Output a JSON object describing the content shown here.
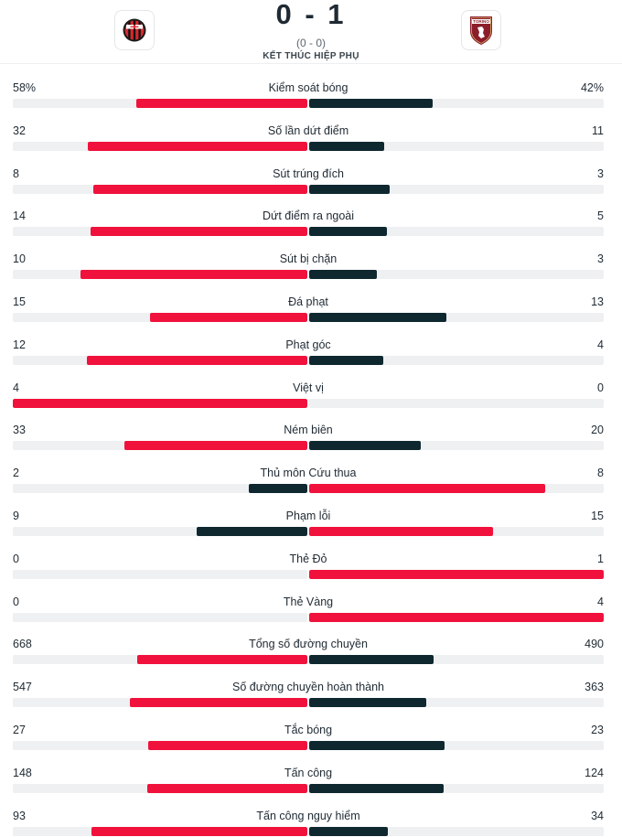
{
  "match": {
    "score": "0 - 1",
    "half_time": "(0 - 0)",
    "status": "KẾT THÚC HIỆP PHỤ",
    "home_logo": "ac-milan-crest",
    "away_logo": "torino-crest",
    "away_logo_text": "TORINO"
  },
  "colors": {
    "leader": "#f0123c",
    "trailer": "#0f2830",
    "track": "#eef0f2"
  },
  "stats": [
    {
      "label": "Kiểm soát bóng",
      "home": "58%",
      "away": "42%",
      "home_value": 58,
      "away_value": 42
    },
    {
      "label": "Số lần dứt điểm",
      "home": "32",
      "away": "11",
      "home_value": 32,
      "away_value": 11
    },
    {
      "label": "Sút trúng đích",
      "home": "8",
      "away": "3",
      "home_value": 8,
      "away_value": 3
    },
    {
      "label": "Dứt điểm ra ngoài",
      "home": "14",
      "away": "5",
      "home_value": 14,
      "away_value": 5
    },
    {
      "label": "Sút bị chặn",
      "home": "10",
      "away": "3",
      "home_value": 10,
      "away_value": 3
    },
    {
      "label": "Đá phạt",
      "home": "15",
      "away": "13",
      "home_value": 15,
      "away_value": 13
    },
    {
      "label": "Phạt góc",
      "home": "12",
      "away": "4",
      "home_value": 12,
      "away_value": 4
    },
    {
      "label": "Việt vị",
      "home": "4",
      "away": "0",
      "home_value": 4,
      "away_value": 0
    },
    {
      "label": "Ném biên",
      "home": "33",
      "away": "20",
      "home_value": 33,
      "away_value": 20
    },
    {
      "label": "Thủ môn Cứu thua",
      "home": "2",
      "away": "8",
      "home_value": 2,
      "away_value": 8
    },
    {
      "label": "Phạm lỗi",
      "home": "9",
      "away": "15",
      "home_value": 9,
      "away_value": 15
    },
    {
      "label": "Thẻ Đỏ",
      "home": "0",
      "away": "1",
      "home_value": 0,
      "away_value": 1
    },
    {
      "label": "Thẻ Vàng",
      "home": "0",
      "away": "4",
      "home_value": 0,
      "away_value": 4
    },
    {
      "label": "Tổng số đường chuyền",
      "home": "668",
      "away": "490",
      "home_value": 668,
      "away_value": 490
    },
    {
      "label": "Số đường chuyền hoàn thành",
      "home": "547",
      "away": "363",
      "home_value": 547,
      "away_value": 363
    },
    {
      "label": "Tắc bóng",
      "home": "27",
      "away": "23",
      "home_value": 27,
      "away_value": 23
    },
    {
      "label": "Tấn công",
      "home": "148",
      "away": "124",
      "home_value": 148,
      "away_value": 124
    },
    {
      "label": "Tấn công nguy hiểm",
      "home": "93",
      "away": "34",
      "home_value": 93,
      "away_value": 34
    }
  ]
}
